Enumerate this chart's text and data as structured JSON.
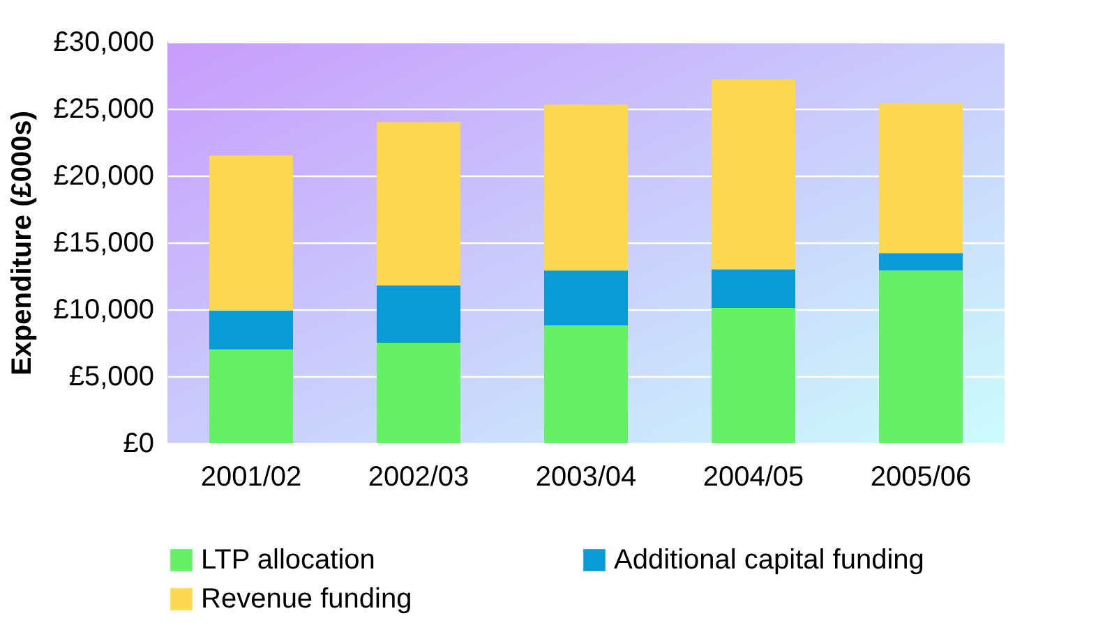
{
  "chart_data": {
    "type": "bar",
    "stacked": true,
    "ylabel": "Expenditure (£000s)",
    "categories": [
      "2001/02",
      "2002/03",
      "2003/04",
      "2004/05",
      "2005/06"
    ],
    "series": [
      {
        "name": "LTP allocation",
        "color": "#66f066",
        "values": [
          7000,
          7500,
          8800,
          10100,
          12900
        ]
      },
      {
        "name": "Additional capital funding",
        "color": "#0a9ad6",
        "values": [
          2900,
          4300,
          4100,
          2900,
          1300
        ]
      },
      {
        "name": "Revenue funding",
        "color": "#fcd850",
        "values": [
          11600,
          12200,
          12400,
          14200,
          11200
        ]
      }
    ],
    "ylim": [
      0,
      30000
    ],
    "yticks": [
      {
        "value": 0,
        "label": "£0"
      },
      {
        "value": 5000,
        "label": "£5,000"
      },
      {
        "value": 10000,
        "label": "£10,000"
      },
      {
        "value": 15000,
        "label": "£15,000"
      },
      {
        "value": 20000,
        "label": "£20,000"
      },
      {
        "value": 25000,
        "label": "£25,000"
      },
      {
        "value": 30000,
        "label": "£30,000"
      }
    ],
    "grid": "y",
    "legend": "bottom"
  }
}
